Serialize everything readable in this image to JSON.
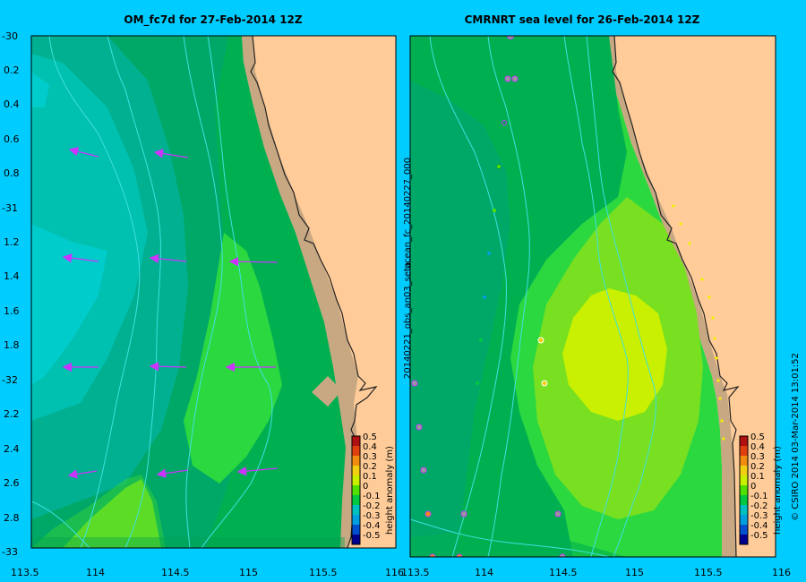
{
  "left_panel": {
    "title": "OM_fc7d for 27-Feb-2014 12Z",
    "y_ticks": [
      "-30",
      "0.2",
      "0.4",
      "0.6",
      "0.8",
      "-31",
      "1.2",
      "1.4",
      "1.6",
      "1.8",
      "-32",
      "2.2",
      "2.4",
      "2.6",
      "2.8",
      "-33"
    ],
    "x_ticks": [
      "113.5",
      "114",
      "114.5",
      "115",
      "115.5",
      "116"
    ]
  },
  "right_panel": {
    "title": "CMRNRT sea level  for 26-Feb-2014 12Z",
    "side_label_top": "ocean_fc_20140227_000",
    "side_label_bottom": "20140221_obs_an03_seta",
    "x_ticks": [
      "113.5",
      "114",
      "114.5",
      "115",
      "115.5",
      "116"
    ]
  },
  "colorbar": {
    "label": "height anomaly (m)",
    "ticks": [
      "0.5",
      "0.4",
      "0.3",
      "0.2",
      "0.1",
      "0",
      "-0.1",
      "-0.2",
      "-0.3",
      "-0.4",
      "-0.5"
    ],
    "colors": [
      "#b01010",
      "#e04010",
      "#f08c10",
      "#f0d010",
      "#c8f000",
      "#50e000",
      "#00c840",
      "#00c0c0",
      "#00a0e0",
      "#0050d0",
      "#000090"
    ]
  },
  "footer": {
    "credit": "© CSIRO 2014   03-Mar-2014 13:01:52"
  },
  "colors": {
    "land": "#ffcc99",
    "coast": "#c8a882",
    "frame_bg": "#00ccff",
    "arrow": "#cc33ff",
    "contour": "#40e0e0"
  }
}
